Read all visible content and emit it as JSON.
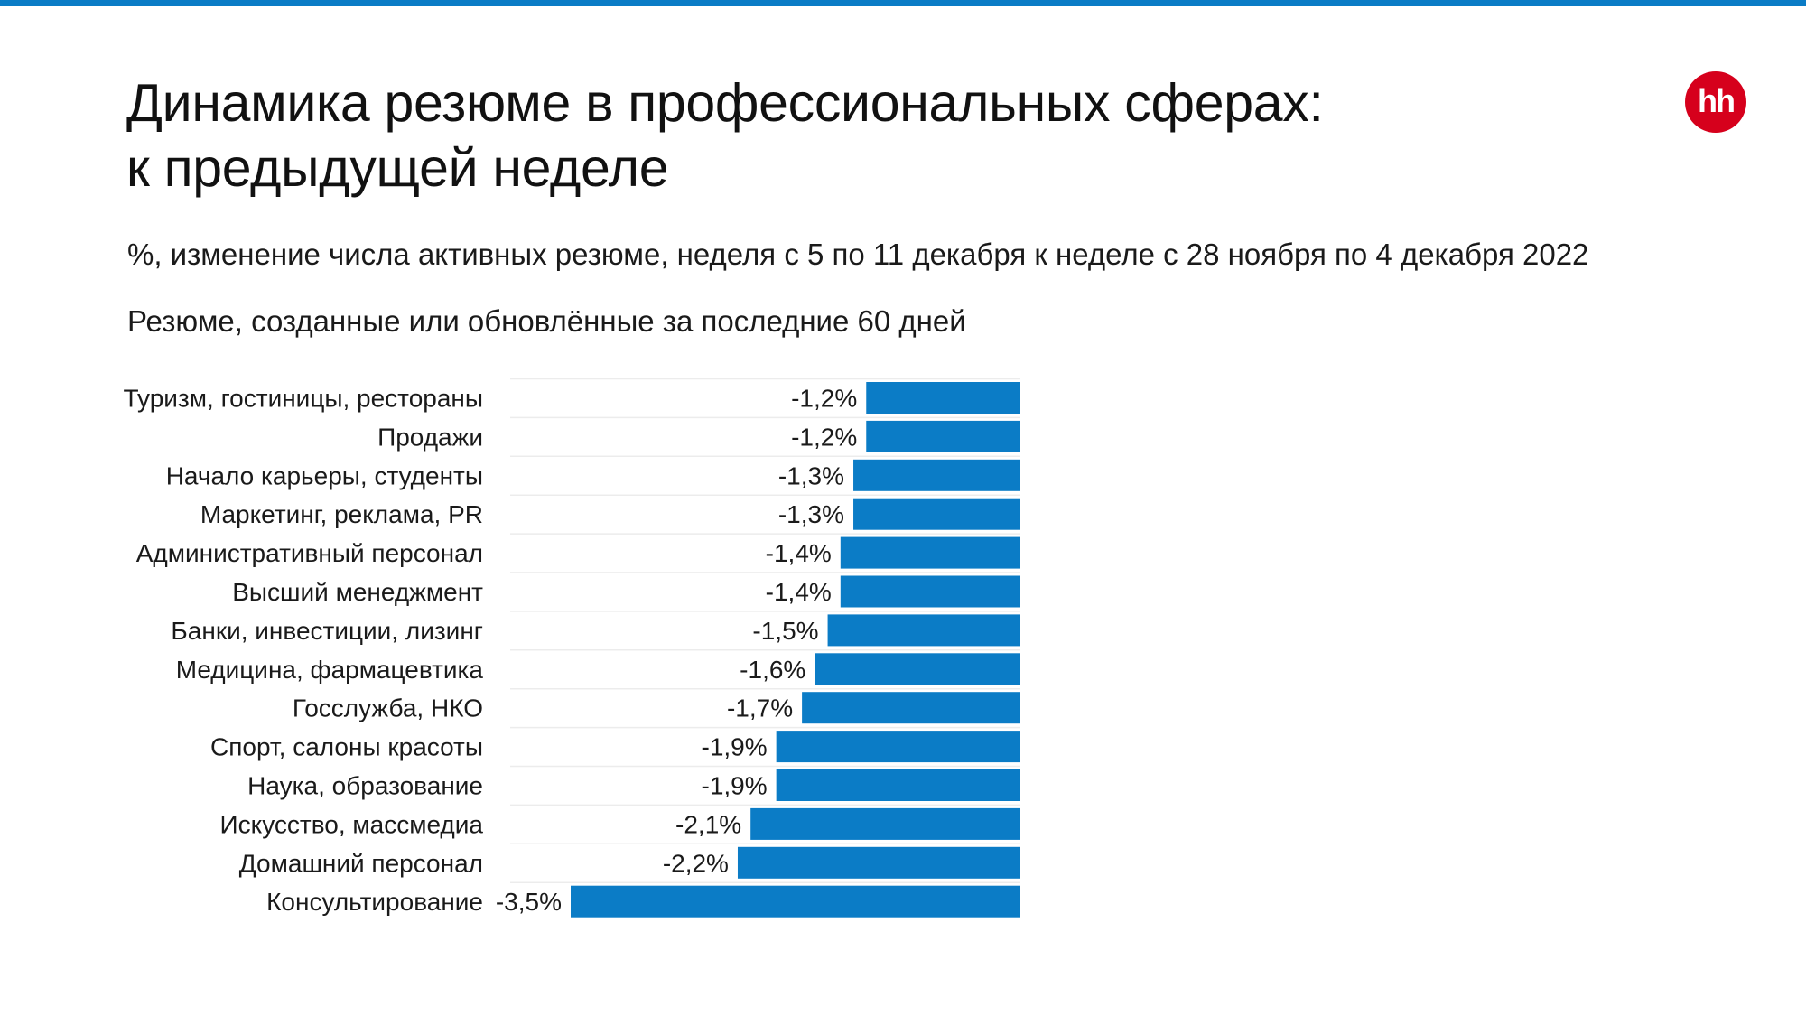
{
  "header": {
    "title_line1": "Динамика резюме в профессиональных сферах:",
    "title_line2": "к предыдущей неделе",
    "subtitle": "%, изменение числа активных резюме, неделя с 5 по 11 декабря к неделе с 28 ноября по 4 декабря 2022",
    "subtitle2": "Резюме, созданные или обновлённые за последние 60 дней",
    "logo_text": "hh"
  },
  "colors": {
    "accent": "#0b7cc6",
    "logo": "#d6001c"
  },
  "chart_data": {
    "type": "bar",
    "orientation": "horizontal",
    "categories": [
      "Туризм, гостиницы, рестораны",
      "Продажи",
      "Начало карьеры, студенты",
      "Маркетинг, реклама, PR",
      "Административный персонал",
      "Высший менеджмент",
      "Банки, инвестиции, лизинг",
      "Медицина, фармацевтика",
      "Госслужба, НКО",
      "Спорт, салоны красоты",
      "Наука, образование",
      "Искусство, массмедиа",
      "Домашний персонал",
      "Консультирование"
    ],
    "values": [
      -1.2,
      -1.2,
      -1.3,
      -1.3,
      -1.4,
      -1.4,
      -1.5,
      -1.6,
      -1.7,
      -1.9,
      -1.9,
      -2.1,
      -2.2,
      -3.5
    ],
    "value_labels": [
      "-1,2%",
      "-1,2%",
      "-1,3%",
      "-1,3%",
      "-1,4%",
      "-1,4%",
      "-1,5%",
      "-1,6%",
      "-1,7%",
      "-1,9%",
      "-1,9%",
      "-2,1%",
      "-2,2%",
      "-3,5%"
    ],
    "xlim": [
      -3.5,
      0
    ],
    "grid": false,
    "legend": "none",
    "bar_color": "#0b7cc6"
  }
}
